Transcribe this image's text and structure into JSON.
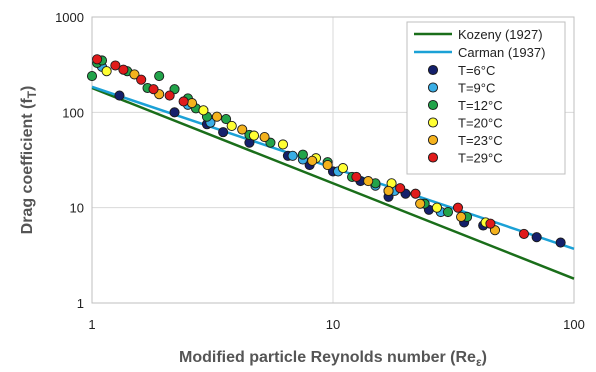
{
  "chart_data": {
    "type": "scatter",
    "xscale": "log",
    "yscale": "log",
    "xlim": [
      1,
      100
    ],
    "ylim": [
      1,
      1000
    ],
    "grid": true,
    "legend_position": "top-right",
    "xlabel": "Modified particle Reynolds number (Re",
    "xlabel_sub": "ε",
    "xlabel_end": ")",
    "ylabel": "Drag coefficient (f",
    "ylabel_sub": "T",
    "ylabel_end": ")",
    "x_ticks": [
      {
        "value": 1,
        "label": "1"
      },
      {
        "value": 10,
        "label": "10"
      },
      {
        "value": 100,
        "label": "100"
      }
    ],
    "y_ticks": [
      {
        "value": 1,
        "label": "1"
      },
      {
        "value": 10,
        "label": "10"
      },
      {
        "value": 100,
        "label": "100"
      },
      {
        "value": 1000,
        "label": "1000"
      }
    ],
    "lines": [
      {
        "name": "Kozeny (1927)",
        "color": "#1a6e1a",
        "x": [
          1,
          100
        ],
        "y": [
          180,
          1.8
        ]
      },
      {
        "name": "Carman (1937)",
        "color": "#1ba1d6",
        "x": [
          1,
          100
        ],
        "y": [
          185,
          3.7
        ]
      }
    ],
    "series": [
      {
        "name": "T=6°C",
        "color": "#14206b",
        "points": [
          [
            1.3,
            150
          ],
          [
            2.2,
            100
          ],
          [
            3.0,
            75
          ],
          [
            3.5,
            62
          ],
          [
            4.5,
            48
          ],
          [
            6.5,
            35
          ],
          [
            8.0,
            28
          ],
          [
            10,
            24
          ],
          [
            13,
            19
          ],
          [
            17,
            13
          ],
          [
            20,
            14
          ],
          [
            25,
            9.5
          ],
          [
            35,
            7
          ],
          [
            42,
            6.5
          ],
          [
            70,
            4.9
          ],
          [
            88,
            4.3
          ]
        ]
      },
      {
        "name": "T=9°C",
        "color": "#3aaee6",
        "points": [
          [
            1.1,
            300
          ],
          [
            2.5,
            120
          ],
          [
            3.1,
            78
          ],
          [
            6.8,
            35
          ],
          [
            7.5,
            32
          ],
          [
            10.5,
            24
          ],
          [
            15,
            17
          ],
          [
            18,
            15
          ],
          [
            28,
            9
          ]
        ]
      },
      {
        "name": "T=12°C",
        "color": "#22a34a",
        "points": [
          [
            1.0,
            240
          ],
          [
            1.05,
            330
          ],
          [
            1.1,
            350
          ],
          [
            1.4,
            270
          ],
          [
            1.7,
            180
          ],
          [
            1.9,
            240
          ],
          [
            2.2,
            175
          ],
          [
            2.5,
            140
          ],
          [
            2.7,
            110
          ],
          [
            3.0,
            90
          ],
          [
            3.6,
            85
          ],
          [
            4.5,
            58
          ],
          [
            5.5,
            48
          ],
          [
            7.5,
            36
          ],
          [
            9.5,
            30
          ],
          [
            12,
            21
          ],
          [
            15,
            18
          ],
          [
            17,
            15
          ],
          [
            24,
            11
          ],
          [
            30,
            9
          ],
          [
            36,
            8
          ]
        ]
      },
      {
        "name": "T=20°C",
        "color": "#ffff33",
        "points": [
          [
            1.15,
            270
          ],
          [
            2.9,
            105
          ],
          [
            3.8,
            72
          ],
          [
            4.7,
            57
          ],
          [
            6.2,
            46
          ],
          [
            8.5,
            33
          ],
          [
            11,
            26
          ],
          [
            17.5,
            18
          ],
          [
            27,
            10
          ],
          [
            43,
            7
          ]
        ]
      },
      {
        "name": "T=23°C",
        "color": "#f4b21e",
        "points": [
          [
            1.5,
            250
          ],
          [
            1.9,
            155
          ],
          [
            2.6,
            125
          ],
          [
            3.3,
            90
          ],
          [
            4.2,
            66
          ],
          [
            5.2,
            55
          ],
          [
            8.2,
            31
          ],
          [
            9.5,
            28
          ],
          [
            14,
            19
          ],
          [
            17,
            15
          ],
          [
            23,
            11
          ],
          [
            34,
            8
          ],
          [
            47,
            5.8
          ]
        ]
      },
      {
        "name": "T=29°C",
        "color": "#e01b1b",
        "points": [
          [
            1.05,
            360
          ],
          [
            1.25,
            310
          ],
          [
            1.35,
            280
          ],
          [
            1.6,
            220
          ],
          [
            1.8,
            175
          ],
          [
            2.1,
            150
          ],
          [
            2.4,
            130
          ],
          [
            12.5,
            21
          ],
          [
            19,
            16
          ],
          [
            22,
            14
          ],
          [
            33,
            10
          ],
          [
            45,
            6.8
          ],
          [
            62,
            5.3
          ]
        ]
      }
    ]
  }
}
